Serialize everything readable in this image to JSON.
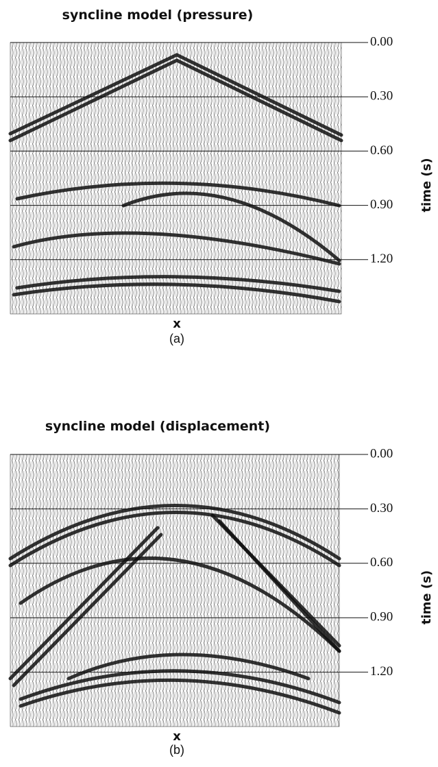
{
  "chart_data": [
    {
      "type": "seismic",
      "title": "syncline model (pressure)",
      "xlabel": "x",
      "caption": "(a)",
      "ylabel": "time (s)",
      "ylim": [
        0,
        1.5
      ],
      "yticks": [
        {
          "value": 0,
          "label": "0.00"
        },
        {
          "value": 0.3,
          "label": "0.30"
        },
        {
          "value": 0.6,
          "label": "0.60"
        },
        {
          "value": 0.9,
          "label": "0.90"
        },
        {
          "value": 1.2,
          "label": "1.20"
        }
      ]
    },
    {
      "type": "seismic",
      "title": "syncline model (displacement)",
      "xlabel": "x",
      "caption": "(b)",
      "ylabel": "time (s)",
      "ylim": [
        0,
        1.5
      ],
      "yticks": [
        {
          "value": 0,
          "label": "0.00"
        },
        {
          "value": 0.3,
          "label": "0.30"
        },
        {
          "value": 0.6,
          "label": "0.60"
        },
        {
          "value": 0.9,
          "label": "0.90"
        },
        {
          "value": 1.2,
          "label": "1.20"
        }
      ]
    }
  ]
}
